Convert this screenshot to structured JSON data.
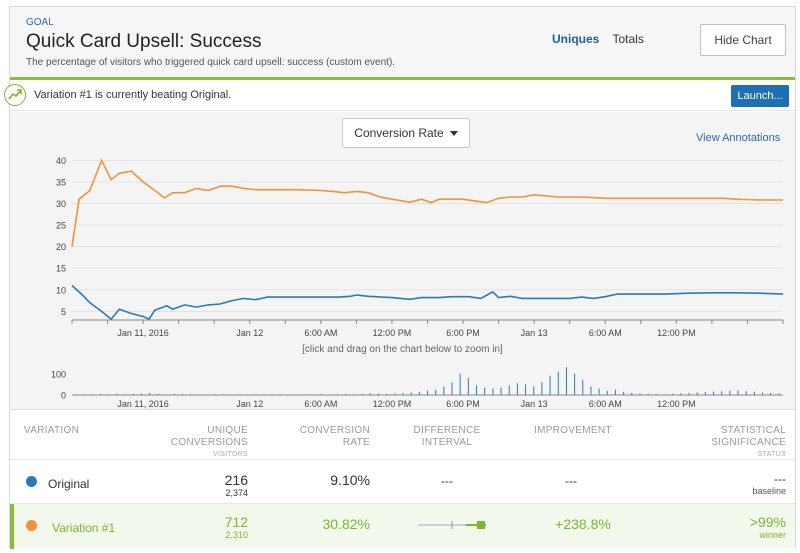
{
  "header": {
    "goal_label": "GOAL",
    "title": "Quick Card Upsell: Success",
    "description": "The percentage of visitors who triggered quick card upsell: success (custom event).",
    "toggle_uniques": "Uniques",
    "toggle_totals": "Totals",
    "hide_chart_label": "Hide Chart"
  },
  "banner": {
    "icon": "trend-up-icon",
    "message": "Variation #1 is currently beating Original.",
    "launch_label": "Launch..."
  },
  "chart": {
    "dropdown_label": "Conversion Rate",
    "view_annotations": "View Annotations",
    "zoom_hint": "[click and drag on the chart below to zoom in]"
  },
  "chart_data": [
    {
      "type": "line",
      "x_tick_labels": [
        "Jan 11, 2016",
        "Jan 12",
        "6:00 AM",
        "12:00 PM",
        "6:00 PM",
        "Jan 13",
        "6:00 AM",
        "12:00 PM"
      ],
      "y_ticks": [
        5,
        10,
        15,
        20,
        25,
        30,
        35,
        40
      ],
      "ylim": [
        3,
        41
      ],
      "x_range_hours": [
        0,
        60
      ],
      "series": [
        {
          "color": "#f2923a",
          "points": [
            [
              0,
              20
            ],
            [
              0.6,
              31
            ],
            [
              1.5,
              33
            ],
            [
              2.5,
              40
            ],
            [
              3.3,
              35.5
            ],
            [
              4,
              37
            ],
            [
              5,
              37.5
            ],
            [
              6,
              35
            ],
            [
              7,
              33
            ],
            [
              7.8,
              31.3
            ],
            [
              8.5,
              32.5
            ],
            [
              9.5,
              32.5
            ],
            [
              10.5,
              33.5
            ],
            [
              11.5,
              33
            ],
            [
              12.5,
              34
            ],
            [
              13.5,
              34
            ],
            [
              14.5,
              33.5
            ],
            [
              15.5,
              33.2
            ],
            [
              17,
              33.2
            ],
            [
              19,
              33.2
            ],
            [
              21,
              33
            ],
            [
              22,
              32.8
            ],
            [
              23,
              32.5
            ],
            [
              24,
              32.8
            ],
            [
              25,
              32.5
            ],
            [
              26,
              31.5
            ],
            [
              27,
              31
            ],
            [
              28.5,
              30.3
            ],
            [
              29.5,
              31
            ],
            [
              30.3,
              30.2
            ],
            [
              31,
              31
            ],
            [
              33,
              31
            ],
            [
              34.2,
              30.5
            ],
            [
              35,
              30.2
            ],
            [
              36,
              31.2
            ],
            [
              37,
              31.5
            ],
            [
              38,
              31.5
            ],
            [
              39,
              32
            ],
            [
              41,
              31.5
            ],
            [
              43,
              31.5
            ],
            [
              45,
              31.2
            ],
            [
              47,
              31.2
            ],
            [
              49,
              31.2
            ],
            [
              52,
              31.2
            ],
            [
              55,
              31.2
            ],
            [
              56,
              31
            ],
            [
              58,
              30.8
            ],
            [
              60,
              30.8
            ]
          ]
        },
        {
          "color": "#2b79b8",
          "points": [
            [
              0,
              11
            ],
            [
              0.8,
              9
            ],
            [
              1.5,
              7
            ],
            [
              2.5,
              5
            ],
            [
              3.3,
              3.2
            ],
            [
              4,
              5.5
            ],
            [
              5,
              4.5
            ],
            [
              6,
              3.8
            ],
            [
              6.5,
              3.2
            ],
            [
              7,
              5.3
            ],
            [
              8,
              6.3
            ],
            [
              8.5,
              5.5
            ],
            [
              9.5,
              6.5
            ],
            [
              10.5,
              6
            ],
            [
              11.5,
              6.5
            ],
            [
              12.5,
              6.7
            ],
            [
              13.5,
              7.5
            ],
            [
              14.5,
              8
            ],
            [
              15.5,
              7.7
            ],
            [
              16.5,
              8.3
            ],
            [
              17.5,
              8.3
            ],
            [
              19,
              8.3
            ],
            [
              20.5,
              8.3
            ],
            [
              21.5,
              8.3
            ],
            [
              22.5,
              8.3
            ],
            [
              23.5,
              8.5
            ],
            [
              24,
              8.8
            ],
            [
              25,
              8.5
            ],
            [
              27,
              8.2
            ],
            [
              28.5,
              7.8
            ],
            [
              29.5,
              8.2
            ],
            [
              31,
              8.2
            ],
            [
              32,
              8.4
            ],
            [
              33.5,
              8.4
            ],
            [
              34.5,
              8
            ],
            [
              35.5,
              9.5
            ],
            [
              36,
              8.2
            ],
            [
              37,
              8.5
            ],
            [
              38,
              8
            ],
            [
              40,
              8
            ],
            [
              42,
              8
            ],
            [
              43,
              8.3
            ],
            [
              44,
              8
            ],
            [
              45,
              8.4
            ],
            [
              46,
              9
            ],
            [
              48,
              9
            ],
            [
              50,
              9
            ],
            [
              52,
              9.2
            ],
            [
              54,
              9.3
            ],
            [
              56,
              9.3
            ],
            [
              58,
              9.2
            ],
            [
              60,
              9
            ]
          ]
        }
      ]
    },
    {
      "type": "bar",
      "y_ticks": [
        0,
        100
      ],
      "ylim": [
        0,
        160
      ],
      "x_range_hours": [
        0,
        60
      ],
      "values": [
        3,
        2,
        2,
        4,
        3,
        6,
        4,
        5,
        7,
        9,
        5,
        3,
        6,
        4,
        3,
        2,
        1,
        4,
        3,
        2,
        3,
        2,
        3,
        2,
        2,
        3,
        2,
        2,
        3,
        2,
        4,
        2,
        3,
        5,
        4,
        6,
        8,
        6,
        5,
        7,
        10,
        12,
        15,
        20,
        25,
        40,
        60,
        100,
        80,
        45,
        35,
        30,
        35,
        45,
        55,
        50,
        40,
        60,
        90,
        110,
        130,
        100,
        70,
        40,
        30,
        20,
        25,
        15,
        10,
        8,
        5,
        4,
        3,
        6,
        8,
        10,
        12,
        14,
        16,
        18,
        20,
        22,
        18,
        15,
        12,
        10,
        8
      ]
    }
  ],
  "table": {
    "headers": {
      "variation": "VARIATION",
      "unique_conversions": "UNIQUE CONVERSIONS",
      "visitors": "VISITORS",
      "conversion_rate": "CONVERSION RATE",
      "difference_interval": "DIFFERENCE INTERVAL",
      "improvement": "IMPROVEMENT",
      "statistical_significance": "STATISTICAL SIGNIFICANCE",
      "status": "STATUS"
    },
    "rows": [
      {
        "name": "Original",
        "dot_color": "#2b79b8",
        "conversions": "216",
        "visitors": "2,374",
        "rate": "9.10%",
        "difference": "---",
        "improvement": "---",
        "significance": "---",
        "status": "baseline"
      },
      {
        "name": "Variation #1",
        "dot_color": "#f2923a",
        "conversions": "712",
        "visitors": "2,310",
        "rate": "30.82%",
        "improvement": "+238.8%",
        "significance": ">99%",
        "status": "winner"
      }
    ]
  }
}
